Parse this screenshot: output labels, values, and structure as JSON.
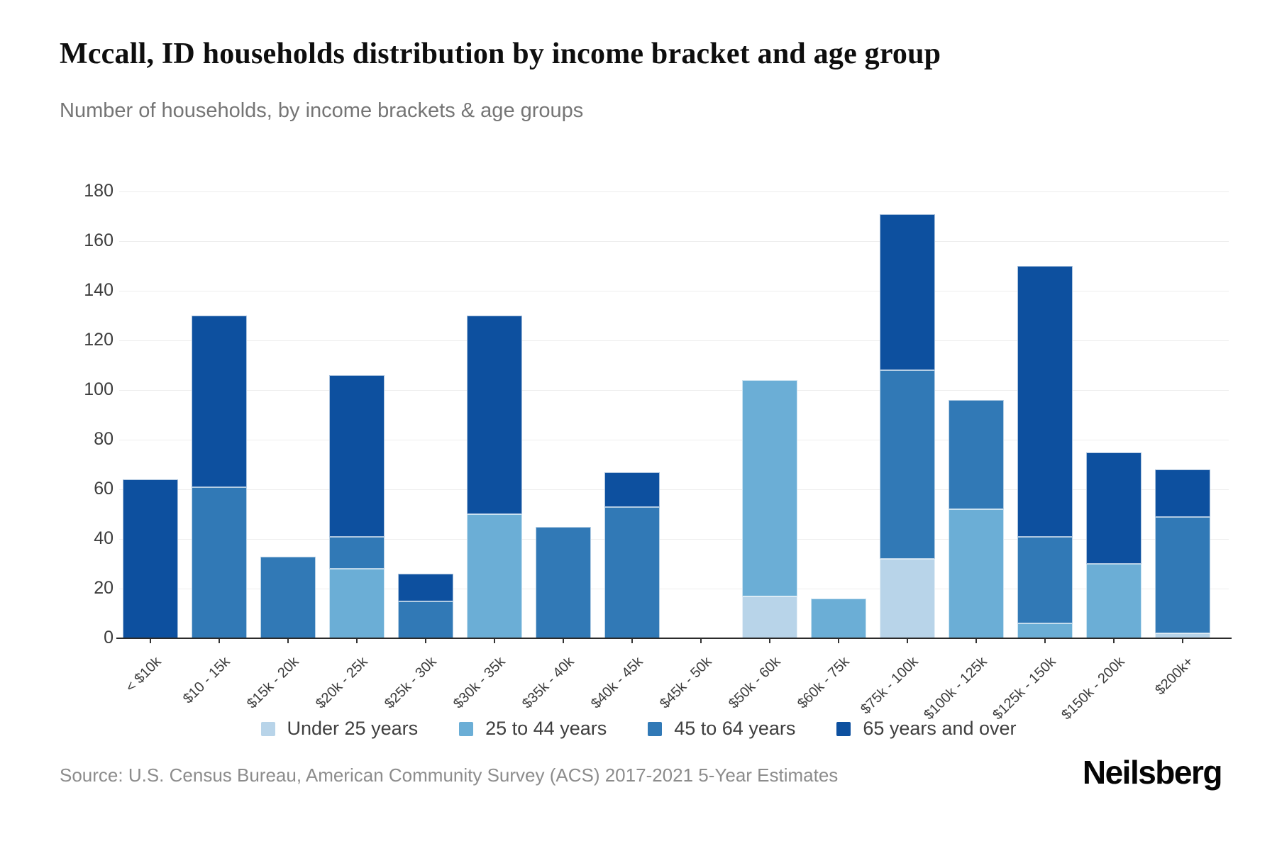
{
  "header": {
    "title": "Mccall, ID households distribution by income bracket and age group",
    "subtitle": "Number of households, by income brackets & age groups"
  },
  "footer": {
    "source": "Source: U.S. Census Bureau, American Community Survey (ACS) 2017-2021 5-Year Estimates",
    "brand": "Neilsberg"
  },
  "chart_data": {
    "type": "bar",
    "stacked": true,
    "title": "Mccall, ID households distribution by income bracket and age group",
    "xlabel": "",
    "ylabel": "Number of households",
    "ylim": [
      0,
      180
    ],
    "y_ticks": [
      0,
      20,
      40,
      60,
      80,
      100,
      120,
      140,
      160,
      180
    ],
    "grid": true,
    "legend_position": "bottom",
    "categories": [
      "< $10k",
      "$10 - 15k",
      "$15k - 20k",
      "$20k - 25k",
      "$25k - 30k",
      "$30k - 35k",
      "$35k - 40k",
      "$40k - 45k",
      "$45k - 50k",
      "$50k - 60k",
      "$60k - 75k",
      "$75k - 100k",
      "$100k - 125k",
      "$125k - 150k",
      "$150k - 200k",
      "$200k+"
    ],
    "series": [
      {
        "name": "Under 25 years",
        "color": "#B8D4E9",
        "values": [
          0,
          0,
          0,
          0,
          0,
          0,
          0,
          0,
          0,
          17,
          0,
          32,
          0,
          0,
          0,
          2
        ]
      },
      {
        "name": "25 to 44 years",
        "color": "#6BAED6",
        "values": [
          0,
          0,
          0,
          28,
          0,
          50,
          0,
          0,
          0,
          87,
          16,
          0,
          52,
          6,
          30,
          0
        ]
      },
      {
        "name": "45 to 64 years",
        "color": "#3179B6",
        "values": [
          0,
          61,
          33,
          13,
          15,
          0,
          45,
          53,
          0,
          0,
          0,
          76,
          44,
          35,
          0,
          47
        ]
      },
      {
        "name": "65 years and over",
        "color": "#0D509F",
        "values": [
          64,
          69,
          0,
          65,
          11,
          80,
          0,
          14,
          0,
          0,
          0,
          63,
          0,
          109,
          45,
          19
        ]
      }
    ],
    "totals": [
      64,
      130,
      33,
      106,
      26,
      130,
      45,
      67,
      0,
      104,
      16,
      171,
      96,
      150,
      75,
      68
    ]
  }
}
